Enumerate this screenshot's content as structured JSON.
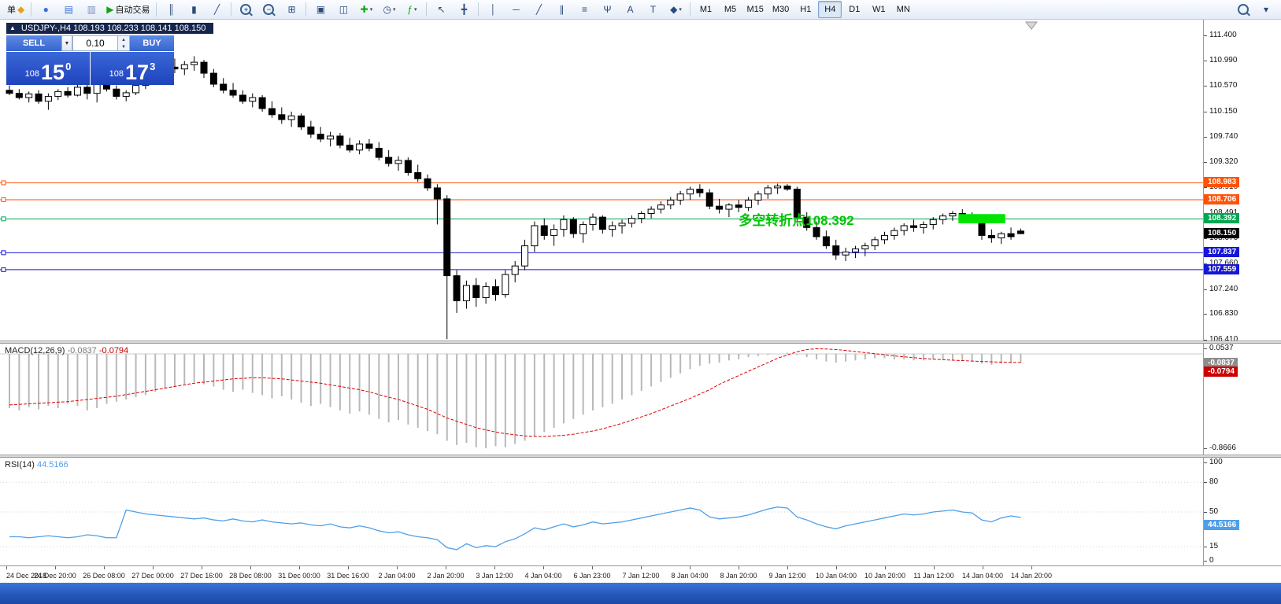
{
  "toolbar": {
    "groups": [
      [
        {
          "name": "new-order-button",
          "label": "单",
          "label_first": true,
          "glyph": "◆",
          "glyph_color": "#e3a31c"
        }
      ],
      [
        {
          "name": "profiles-icon",
          "glyph": "●",
          "glyph_color": "#3a6fd8"
        },
        {
          "name": "market-watch-icon",
          "glyph": "▤",
          "glyph_color": "#3a6fd8"
        },
        {
          "name": "navigator-icon",
          "glyph": "▥",
          "glyph_color": "#7a8fc0"
        },
        {
          "name": "autotrading-button",
          "glyph": "▶",
          "glyph_color": "#13a513",
          "label": "自动交易"
        }
      ],
      [
        {
          "name": "bar-chart-icon",
          "glyph": "║"
        },
        {
          "name": "candlestick-chart-icon",
          "glyph": "▮"
        },
        {
          "name": "line-chart-icon",
          "glyph": "╱"
        }
      ],
      [
        {
          "name": "zoom-in-icon",
          "glyph": "+",
          "mag": true
        },
        {
          "name": "zoom-out-icon",
          "glyph": "−",
          "mag": true
        },
        {
          "name": "tile-windows-icon",
          "glyph": "⊞"
        }
      ],
      [
        {
          "name": "cascade-windows-icon",
          "glyph": "▣"
        },
        {
          "name": "tile-vertical-icon",
          "glyph": "◫"
        },
        {
          "name": "new-chart-icon",
          "glyph": "✚",
          "glyph_color": "#13a513",
          "caret": true
        },
        {
          "name": "period-dropdown-icon",
          "glyph": "◷",
          "caret": true
        },
        {
          "name": "indicators-dropdown-icon",
          "glyph": "ƒ",
          "glyph_color": "#13a513",
          "caret": true
        }
      ],
      [
        {
          "name": "cursor-icon",
          "glyph": "↖"
        },
        {
          "name": "crosshair-icon",
          "glyph": "╋"
        }
      ],
      [
        {
          "name": "vertical-line-icon",
          "glyph": "│"
        },
        {
          "name": "horizontal-line-icon",
          "glyph": "─"
        },
        {
          "name": "trendline-icon",
          "glyph": "╱"
        },
        {
          "name": "equidistant-channel-icon",
          "glyph": "∥"
        },
        {
          "name": "fibonacci-icon",
          "glyph": "≡"
        },
        {
          "name": "andrews-pitchfork-icon",
          "glyph": "Ψ"
        },
        {
          "name": "text-icon",
          "glyph": "A"
        },
        {
          "name": "label-icon",
          "glyph": "T"
        },
        {
          "name": "shapes-dropdown-icon",
          "glyph": "◆",
          "caret": true
        }
      ],
      [
        {
          "name": "tf-m1",
          "label": "M1",
          "tf": true
        },
        {
          "name": "tf-m5",
          "label": "M5",
          "tf": true
        },
        {
          "name": "tf-m15",
          "label": "M15",
          "tf": true
        },
        {
          "name": "tf-m30",
          "label": "M30",
          "tf": true
        },
        {
          "name": "tf-h1",
          "label": "H1",
          "tf": true
        },
        {
          "name": "tf-h4",
          "label": "H4",
          "tf": true,
          "active": true
        },
        {
          "name": "tf-d1",
          "label": "D1",
          "tf": true
        },
        {
          "name": "tf-w1",
          "label": "W1",
          "tf": true
        },
        {
          "name": "tf-mn",
          "label": "MN",
          "tf": true
        }
      ]
    ],
    "right_group": [
      {
        "name": "search-icon",
        "search": true
      },
      {
        "name": "toolbar-options-icon",
        "glyph": "▾"
      }
    ]
  },
  "symbol_bar": {
    "collapse_glyph": "▲",
    "text": "USDJPY-,H4  108.193 108.233 108.141 108.150"
  },
  "trade_panel": {
    "sell_label": "SELL",
    "buy_label": "BUY",
    "volume": "0.10",
    "caret_glyph": "▼",
    "up_glyph": "▲",
    "down_glyph": "▼",
    "sell_price": {
      "prefix": "108",
      "big": "15",
      "sup": "0"
    },
    "buy_price": {
      "prefix": "108",
      "big": "17",
      "sup": "3"
    }
  },
  "chart_data": {
    "type": "candlestick",
    "symbol": "USDJPY-",
    "timeframe": "H4",
    "ohlc_header": {
      "open": "108.193",
      "high": "108.233",
      "low": "108.141",
      "close": "108.150"
    },
    "y_axis": {
      "range": [
        106.41,
        111.4
      ],
      "labels": [
        "111.400",
        "110.990",
        "110.570",
        "110.150",
        "109.740",
        "109.320",
        "108.910",
        "108.491",
        "108.070",
        "107.660",
        "107.240",
        "106.830",
        "106.410"
      ],
      "tags": [
        {
          "text": "108.983",
          "color": "#ff5208"
        },
        {
          "text": "108.706",
          "color": "#ff5208"
        },
        {
          "text": "108.392",
          "color": "#00a651"
        },
        {
          "text": "108.150",
          "color": "#000000"
        },
        {
          "text": "107.837",
          "color": "#1616d6"
        },
        {
          "text": "107.559",
          "color": "#1616d6"
        }
      ]
    },
    "x_axis": {
      "labels": [
        "24 Dec 2018",
        "24 Dec 20:00",
        "26 Dec 08:00",
        "27 Dec 00:00",
        "27 Dec 16:00",
        "28 Dec 08:00",
        "31 Dec 00:00",
        "31 Dec 16:00",
        "2 Jan 04:00",
        "2 Jan 20:00",
        "3 Jan 12:00",
        "4 Jan 04:00",
        "6 Jan 23:00",
        "7 Jan 12:00",
        "8 Jan 04:00",
        "8 Jan 20:00",
        "9 Jan 12:00",
        "10 Jan 04:00",
        "10 Jan 20:00",
        "11 Jan 12:00",
        "14 Jan 04:00",
        "14 Jan 20:00"
      ]
    },
    "levels": [
      {
        "price": 108.983,
        "color": "#ff5208"
      },
      {
        "price": 108.706,
        "color": "#ff5208"
      },
      {
        "price": 108.392,
        "color": "#00a651"
      },
      {
        "price": 107.837,
        "color": "#1616d6"
      },
      {
        "price": 107.559,
        "color": "#1616d6"
      }
    ],
    "annotation": {
      "text": "多空转折点108.392",
      "at_index": 75,
      "price": 108.29,
      "color": "#00c400"
    },
    "highlight": {
      "from_index": 98,
      "to_index": 102,
      "price_top": 108.47,
      "price_bottom": 108.32,
      "color": "#00e400"
    },
    "candles": [
      [
        110.5,
        110.58,
        110.42,
        110.45
      ],
      [
        110.45,
        110.52,
        110.35,
        110.38
      ],
      [
        110.38,
        110.48,
        110.3,
        110.44
      ],
      [
        110.44,
        110.5,
        110.28,
        110.32
      ],
      [
        110.32,
        110.45,
        110.18,
        110.4
      ],
      [
        110.4,
        110.52,
        110.34,
        110.48
      ],
      [
        110.48,
        110.55,
        110.38,
        110.42
      ],
      [
        110.42,
        110.6,
        110.4,
        110.55
      ],
      [
        110.55,
        110.72,
        110.35,
        110.45
      ],
      [
        110.45,
        110.68,
        110.3,
        110.62
      ],
      [
        110.62,
        110.7,
        110.48,
        110.52
      ],
      [
        110.52,
        110.58,
        110.35,
        110.4
      ],
      [
        110.4,
        110.5,
        110.32,
        110.46
      ],
      [
        110.46,
        110.62,
        110.42,
        110.58
      ],
      [
        110.58,
        110.75,
        110.52,
        110.7
      ],
      [
        110.7,
        110.85,
        110.62,
        110.8
      ],
      [
        110.8,
        110.95,
        110.72,
        110.88
      ],
      [
        110.88,
        111.02,
        110.78,
        110.85
      ],
      [
        110.85,
        110.98,
        110.75,
        110.92
      ],
      [
        110.92,
        111.06,
        110.82,
        110.96
      ],
      [
        110.96,
        111.0,
        110.7,
        110.78
      ],
      [
        110.78,
        110.85,
        110.55,
        110.6
      ],
      [
        110.6,
        110.7,
        110.45,
        110.5
      ],
      [
        110.5,
        110.62,
        110.38,
        110.42
      ],
      [
        110.42,
        110.5,
        110.28,
        110.32
      ],
      [
        110.32,
        110.45,
        110.22,
        110.38
      ],
      [
        110.38,
        110.42,
        110.15,
        110.2
      ],
      [
        110.2,
        110.32,
        110.05,
        110.1
      ],
      [
        110.1,
        110.22,
        109.95,
        110.02
      ],
      [
        110.02,
        110.15,
        109.9,
        110.08
      ],
      [
        110.08,
        110.12,
        109.85,
        109.9
      ],
      [
        109.9,
        110.0,
        109.72,
        109.78
      ],
      [
        109.78,
        109.9,
        109.65,
        109.7
      ],
      [
        109.7,
        109.82,
        109.58,
        109.75
      ],
      [
        109.75,
        109.8,
        109.55,
        109.6
      ],
      [
        109.6,
        109.72,
        109.48,
        109.52
      ],
      [
        109.52,
        109.68,
        109.45,
        109.62
      ],
      [
        109.62,
        109.7,
        109.5,
        109.55
      ],
      [
        109.55,
        109.65,
        109.35,
        109.4
      ],
      [
        109.4,
        109.52,
        109.25,
        109.3
      ],
      [
        109.3,
        109.42,
        109.18,
        109.35
      ],
      [
        109.35,
        109.4,
        109.1,
        109.15
      ],
      [
        109.15,
        109.28,
        109.0,
        109.05
      ],
      [
        109.05,
        109.12,
        108.85,
        108.9
      ],
      [
        108.9,
        108.96,
        108.3,
        108.72
      ],
      [
        108.72,
        108.78,
        106.42,
        107.46
      ],
      [
        107.46,
        107.55,
        106.85,
        107.05
      ],
      [
        107.05,
        107.38,
        106.92,
        107.3
      ],
      [
        107.3,
        107.42,
        106.95,
        107.1
      ],
      [
        107.1,
        107.35,
        107.0,
        107.28
      ],
      [
        107.28,
        107.4,
        107.05,
        107.15
      ],
      [
        107.15,
        107.55,
        107.1,
        107.48
      ],
      [
        107.48,
        107.7,
        107.35,
        107.62
      ],
      [
        107.62,
        108.05,
        107.55,
        107.95
      ],
      [
        107.95,
        108.35,
        107.85,
        108.28
      ],
      [
        108.28,
        108.4,
        108.05,
        108.12
      ],
      [
        108.12,
        108.3,
        107.95,
        108.22
      ],
      [
        108.22,
        108.45,
        108.1,
        108.38
      ],
      [
        108.38,
        108.42,
        108.08,
        108.15
      ],
      [
        108.15,
        108.35,
        108.0,
        108.3
      ],
      [
        108.3,
        108.48,
        108.2,
        108.42
      ],
      [
        108.42,
        108.45,
        108.15,
        108.22
      ],
      [
        108.22,
        108.35,
        108.1,
        108.28
      ],
      [
        108.28,
        108.38,
        108.15,
        108.32
      ],
      [
        108.32,
        108.45,
        108.25,
        108.4
      ],
      [
        108.4,
        108.52,
        108.32,
        108.48
      ],
      [
        108.48,
        108.6,
        108.4,
        108.55
      ],
      [
        108.55,
        108.68,
        108.48,
        108.62
      ],
      [
        108.62,
        108.75,
        108.55,
        108.7
      ],
      [
        108.7,
        108.85,
        108.62,
        108.8
      ],
      [
        108.8,
        108.92,
        108.7,
        108.88
      ],
      [
        108.88,
        108.96,
        108.75,
        108.82
      ],
      [
        108.82,
        108.88,
        108.55,
        108.6
      ],
      [
        108.6,
        108.72,
        108.48,
        108.55
      ],
      [
        108.55,
        108.65,
        108.42,
        108.62
      ],
      [
        108.62,
        108.7,
        108.5,
        108.58
      ],
      [
        108.58,
        108.75,
        108.52,
        108.7
      ],
      [
        108.7,
        108.85,
        108.62,
        108.8
      ],
      [
        108.8,
        108.95,
        108.72,
        108.9
      ],
      [
        108.9,
        108.97,
        108.8,
        108.93
      ],
      [
        108.93,
        108.96,
        108.85,
        108.88
      ],
      [
        108.88,
        108.92,
        108.35,
        108.42
      ],
      [
        108.42,
        108.5,
        108.2,
        108.25
      ],
      [
        108.25,
        108.35,
        108.05,
        108.1
      ],
      [
        108.1,
        108.2,
        107.9,
        107.95
      ],
      [
        107.95,
        108.05,
        107.72,
        107.8
      ],
      [
        107.8,
        107.92,
        107.7,
        107.85
      ],
      [
        107.85,
        107.95,
        107.75,
        107.9
      ],
      [
        107.9,
        108.0,
        107.78,
        107.95
      ],
      [
        107.95,
        108.1,
        107.88,
        108.05
      ],
      [
        108.05,
        108.18,
        107.98,
        108.12
      ],
      [
        108.12,
        108.25,
        108.05,
        108.2
      ],
      [
        108.2,
        108.32,
        108.12,
        108.28
      ],
      [
        108.28,
        108.38,
        108.18,
        108.25
      ],
      [
        108.25,
        108.35,
        108.15,
        108.3
      ],
      [
        108.3,
        108.42,
        108.22,
        108.38
      ],
      [
        108.38,
        108.48,
        108.3,
        108.44
      ],
      [
        108.44,
        108.52,
        108.36,
        108.48
      ],
      [
        108.48,
        108.55,
        108.4,
        108.45
      ],
      [
        108.45,
        108.5,
        108.35,
        108.42
      ],
      [
        108.42,
        108.46,
        108.05,
        108.12
      ],
      [
        108.12,
        108.22,
        108.0,
        108.08
      ],
      [
        108.08,
        108.18,
        107.98,
        108.15
      ],
      [
        108.15,
        108.25,
        108.05,
        108.1
      ],
      [
        108.193,
        108.233,
        108.141,
        108.15
      ]
    ],
    "macd": {
      "label": "MACD(12,26,9)",
      "value_main": "-0.0837",
      "value_signal": "-0.0794",
      "scale": [
        "0.0537",
        "-0.8666"
      ],
      "hist_color": "#b8b8b8",
      "signal_color": "#dd0000",
      "hist": [
        -0.5,
        -0.52,
        -0.49,
        -0.51,
        -0.48,
        -0.5,
        -0.46,
        -0.48,
        -0.52,
        -0.5,
        -0.46,
        -0.44,
        -0.42,
        -0.4,
        -0.38,
        -0.35,
        -0.32,
        -0.3,
        -0.28,
        -0.26,
        -0.28,
        -0.3,
        -0.33,
        -0.35,
        -0.33,
        -0.36,
        -0.38,
        -0.41,
        -0.39,
        -0.42,
        -0.45,
        -0.48,
        -0.46,
        -0.49,
        -0.52,
        -0.55,
        -0.53,
        -0.56,
        -0.6,
        -0.63,
        -0.61,
        -0.65,
        -0.68,
        -0.71,
        -0.74,
        -0.8,
        -0.84,
        -0.82,
        -0.86,
        -0.87,
        -0.85,
        -0.86,
        -0.83,
        -0.8,
        -0.76,
        -0.72,
        -0.68,
        -0.64,
        -0.6,
        -0.56,
        -0.52,
        -0.49,
        -0.46,
        -0.42,
        -0.38,
        -0.34,
        -0.3,
        -0.26,
        -0.22,
        -0.18,
        -0.14,
        -0.11,
        -0.09,
        -0.08,
        -0.06,
        -0.05,
        -0.03,
        -0.02,
        -0.01,
        0.0,
        0.01,
        -0.01,
        -0.03,
        -0.05,
        -0.07,
        -0.08,
        -0.07,
        -0.06,
        -0.05,
        -0.04,
        -0.04,
        -0.05,
        -0.05,
        -0.06,
        -0.06,
        -0.05,
        -0.05,
        -0.06,
        -0.06,
        -0.07,
        -0.09,
        -0.1,
        -0.09,
        -0.085,
        -0.0837
      ],
      "signal": [
        -0.47,
        -0.465,
        -0.46,
        -0.455,
        -0.45,
        -0.445,
        -0.44,
        -0.43,
        -0.42,
        -0.41,
        -0.4,
        -0.39,
        -0.375,
        -0.36,
        -0.345,
        -0.33,
        -0.315,
        -0.3,
        -0.285,
        -0.27,
        -0.26,
        -0.25,
        -0.24,
        -0.23,
        -0.225,
        -0.22,
        -0.22,
        -0.225,
        -0.23,
        -0.24,
        -0.25,
        -0.26,
        -0.27,
        -0.285,
        -0.3,
        -0.315,
        -0.33,
        -0.35,
        -0.375,
        -0.4,
        -0.42,
        -0.45,
        -0.48,
        -0.51,
        -0.55,
        -0.59,
        -0.62,
        -0.65,
        -0.68,
        -0.7,
        -0.72,
        -0.735,
        -0.745,
        -0.755,
        -0.76,
        -0.76,
        -0.755,
        -0.75,
        -0.74,
        -0.725,
        -0.71,
        -0.69,
        -0.665,
        -0.64,
        -0.61,
        -0.58,
        -0.55,
        -0.515,
        -0.48,
        -0.445,
        -0.41,
        -0.37,
        -0.33,
        -0.28,
        -0.24,
        -0.2,
        -0.16,
        -0.12,
        -0.08,
        -0.04,
        -0.01,
        0.02,
        0.04,
        0.048,
        0.045,
        0.04,
        0.032,
        0.022,
        0.012,
        0.002,
        -0.008,
        -0.018,
        -0.027,
        -0.035,
        -0.042,
        -0.048,
        -0.053,
        -0.058,
        -0.062,
        -0.066,
        -0.07,
        -0.073,
        -0.076,
        -0.078,
        -0.0794
      ]
    },
    "rsi": {
      "label": "RSI(14)",
      "value": "44.5166",
      "color": "#4f9fe8",
      "scale": [
        "100",
        "80",
        "50",
        "15",
        "0"
      ],
      "levels": [
        80,
        50,
        15
      ],
      "values": [
        25,
        25,
        24,
        25,
        26,
        25,
        24,
        25,
        27,
        26,
        24,
        24,
        52,
        50,
        48,
        47,
        46,
        45,
        44,
        43,
        44,
        42,
        41,
        43,
        41,
        40,
        42,
        40,
        39,
        38,
        39,
        37,
        36,
        38,
        35,
        34,
        36,
        34,
        31,
        29,
        30,
        27,
        25,
        24,
        22,
        14,
        12,
        18,
        14,
        16,
        15,
        20,
        23,
        28,
        34,
        32,
        35,
        38,
        35,
        37,
        40,
        38,
        39,
        40,
        42,
        44,
        46,
        48,
        50,
        52,
        54,
        52,
        45,
        43,
        44,
        45,
        47,
        50,
        53,
        55,
        54,
        45,
        42,
        38,
        35,
        33,
        36,
        38,
        40,
        42,
        44,
        46,
        48,
        47,
        48,
        50,
        51,
        52,
        50,
        49,
        42,
        40,
        44,
        46,
        44.5
      ]
    }
  }
}
